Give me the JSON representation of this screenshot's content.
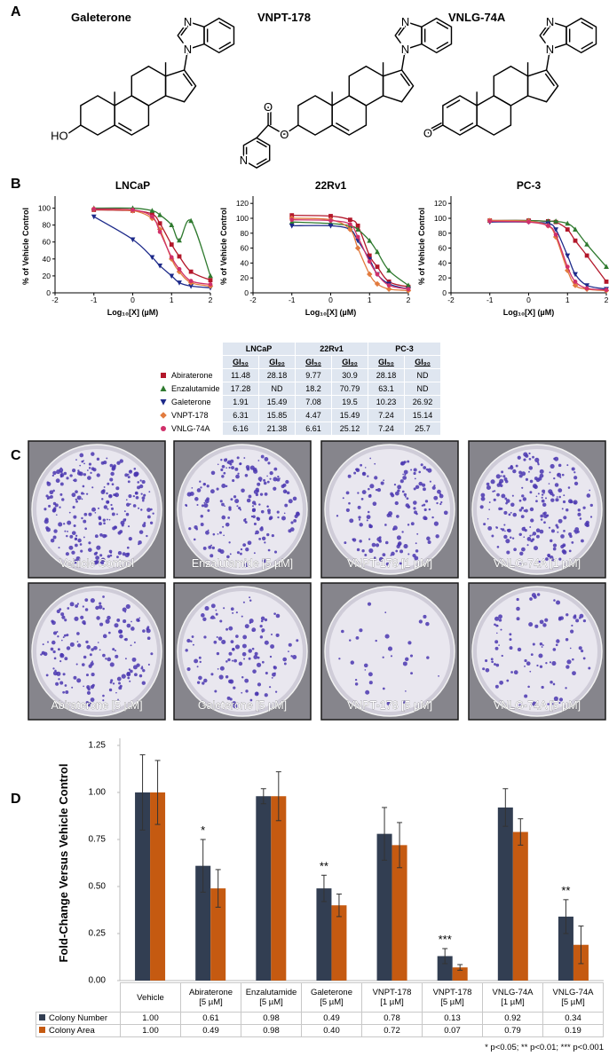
{
  "panels": [
    "A",
    "B",
    "C",
    "D"
  ],
  "structures": [
    {
      "name": "Galeterone",
      "atoms": [
        "N",
        "N",
        "HO"
      ]
    },
    {
      "name": "VNPT-178",
      "atoms": [
        "N",
        "N",
        "O",
        "O",
        "N"
      ]
    },
    {
      "name": "VNLG-74A",
      "atoms": [
        "N",
        "N",
        "O"
      ]
    }
  ],
  "chart_data": [
    {
      "type": "line",
      "title": "LNCaP",
      "x_label": "Log₁₀[X] (µM)",
      "y_label": "% of Vehicle Control",
      "x": [
        -1,
        0,
        0.5,
        0.7,
        1,
        1.2,
        1.5,
        2
      ],
      "xlim": [
        -2,
        2
      ],
      "xticks": [
        -2,
        -1,
        0,
        1,
        2
      ],
      "ylim": [
        0,
        110
      ],
      "yticks": [
        0,
        20,
        40,
        60,
        80,
        100
      ],
      "series": [
        {
          "color": "#b3172a",
          "marker": "square",
          "values": [
            98,
            97,
            93,
            82,
            57,
            43,
            25,
            15
          ]
        },
        {
          "color": "#2f7a2f",
          "marker": "triangle",
          "values": [
            100,
            100,
            97,
            92,
            80,
            62,
            85,
            20
          ]
        },
        {
          "color": "#1d2a8a",
          "marker": "triangle-down",
          "values": [
            90,
            63,
            42,
            32,
            20,
            12,
            8,
            6
          ]
        },
        {
          "color": "#e27b3e",
          "marker": "diamond",
          "values": [
            99,
            97,
            88,
            75,
            40,
            25,
            12,
            8
          ]
        },
        {
          "color": "#d0306a",
          "marker": "circle",
          "values": [
            99,
            98,
            90,
            72,
            42,
            28,
            14,
            10
          ]
        }
      ]
    },
    {
      "type": "line",
      "title": "22Rv1",
      "x_label": "Log₁₀[X] (µM)",
      "y_label": "% of Vehicle Control",
      "x": [
        -1,
        0,
        0.5,
        0.7,
        1,
        1.2,
        1.5,
        2
      ],
      "xlim": [
        -2,
        2
      ],
      "xticks": [
        -2,
        -1,
        0,
        1,
        2
      ],
      "ylim": [
        0,
        125
      ],
      "yticks": [
        0,
        20,
        40,
        60,
        80,
        100,
        120
      ],
      "series": [
        {
          "color": "#b3172a",
          "marker": "square",
          "values": [
            104,
            103,
            98,
            90,
            50,
            35,
            15,
            8
          ]
        },
        {
          "color": "#2f7a2f",
          "marker": "triangle",
          "values": [
            95,
            93,
            90,
            85,
            70,
            55,
            30,
            10
          ]
        },
        {
          "color": "#1d2a8a",
          "marker": "triangle-down",
          "values": [
            90,
            90,
            85,
            70,
            45,
            25,
            12,
            5
          ]
        },
        {
          "color": "#e27b3e",
          "marker": "diamond",
          "values": [
            100,
            98,
            85,
            60,
            25,
            12,
            5,
            3
          ]
        },
        {
          "color": "#d0306a",
          "marker": "circle",
          "values": [
            98,
            97,
            92,
            75,
            42,
            25,
            10,
            5
          ]
        }
      ]
    },
    {
      "type": "line",
      "title": "PC-3",
      "x_label": "Log₁₀[X] (µM)",
      "y_label": "% of Vehicle Control",
      "x": [
        -1,
        0,
        0.5,
        0.7,
        1,
        1.2,
        1.5,
        2
      ],
      "xlim": [
        -2,
        2
      ],
      "xticks": [
        -2,
        -1,
        0,
        1,
        2
      ],
      "ylim": [
        0,
        125
      ],
      "yticks": [
        0,
        20,
        40,
        60,
        80,
        100,
        120
      ],
      "series": [
        {
          "color": "#b3172a",
          "marker": "square",
          "values": [
            97,
            97,
            96,
            95,
            85,
            70,
            50,
            15
          ]
        },
        {
          "color": "#2f7a2f",
          "marker": "triangle",
          "values": [
            97,
            97,
            96,
            96,
            93,
            85,
            65,
            35
          ]
        },
        {
          "color": "#1d2a8a",
          "marker": "triangle-down",
          "values": [
            95,
            95,
            93,
            85,
            50,
            25,
            10,
            5
          ]
        },
        {
          "color": "#e27b3e",
          "marker": "diamond",
          "values": [
            97,
            96,
            90,
            75,
            30,
            10,
            5,
            3
          ]
        },
        {
          "color": "#d0306a",
          "marker": "circle",
          "values": [
            96,
            95,
            90,
            78,
            35,
            15,
            6,
            4
          ]
        }
      ]
    },
    {
      "type": "bar",
      "y_label": "Fold-Change Versus Vehicle Control",
      "categories": [
        "Vehicle",
        "Abiraterone\n[5 µM]",
        "Enzalutamide\n[5 µM]",
        "Galeterone\n[5 µM]",
        "VNPT-178\n[1 µM]",
        "VNPT-178\n[5 µM]",
        "VNLG-74A\n[1 µM]",
        "VNLG-74A\n[5 µM]"
      ],
      "ylim": [
        0,
        1.25
      ],
      "yticks": [
        {
          "value": 0,
          "label": "0.00"
        },
        0.25,
        {
          "value": 0.5,
          "label": "0.50"
        },
        0.75,
        {
          "value": 1,
          "label": "1.00"
        },
        1.25
      ],
      "series": [
        {
          "name": "Colony Number",
          "color": "#323e52",
          "values": [
            1,
            0.61,
            0.98,
            0.49,
            0.78,
            0.13,
            0.92,
            0.34
          ],
          "value_labels": [
            "1.00",
            "0.61",
            "0.98",
            "0.49",
            "0.78",
            "0.13",
            "0.92",
            "0.34"
          ],
          "errors": [
            0.2,
            0.14,
            0.04,
            0.07,
            0.14,
            0.04,
            0.1,
            0.09
          ]
        },
        {
          "name": "Colony Area",
          "color": "#c55a11",
          "values": [
            1,
            0.49,
            0.98,
            0.4,
            0.72,
            0.07,
            0.79,
            0.19
          ],
          "value_labels": [
            "1.00",
            "0.49",
            "0.98",
            "0.40",
            "0.72",
            "0.07",
            "0.79",
            "0.19"
          ],
          "errors": [
            0.17,
            0.1,
            0.13,
            0.06,
            0.12,
            0.015,
            0.07,
            0.1
          ]
        }
      ],
      "annotations": [
        null,
        "*",
        null,
        "**",
        null,
        "***",
        null,
        "**"
      ],
      "footnote": "* p<0.05; ** p<0.01; *** p<0.001"
    }
  ],
  "table": {
    "columns": [
      "LNCaP",
      "22Rv1",
      "PC-3"
    ],
    "subheaders": [
      "GI₅₀",
      "GI₉₀"
    ],
    "rows": [
      {
        "name": "Abiraterone",
        "values": [
          11.48,
          28.18,
          9.77,
          30.9,
          28.18,
          "ND"
        ]
      },
      {
        "name": "Enzalutamide",
        "values": [
          17.28,
          "ND",
          18.2,
          70.79,
          63.1,
          "ND"
        ]
      },
      {
        "name": "Galeterone",
        "values": [
          1.91,
          15.49,
          7.08,
          19.5,
          10.23,
          26.92
        ]
      },
      {
        "name": "VNPT-178",
        "values": [
          6.31,
          15.85,
          4.47,
          15.49,
          7.24,
          15.14
        ]
      },
      {
        "name": "VNLG-74A",
        "values": [
          6.16,
          21.38,
          6.61,
          25.12,
          7.24,
          25.7
        ]
      }
    ]
  },
  "plates": [
    "Vehicle Control",
    "Enzalutamide [5 µM]",
    "VNPT-178 [1 µM]",
    "VNLG-74A [1 µM]",
    "Abiraterone [5 µM]",
    "Galeterone [5 µM]",
    "VNPT-178 [5 µM]",
    "VNLG-74A [5 µM]"
  ]
}
